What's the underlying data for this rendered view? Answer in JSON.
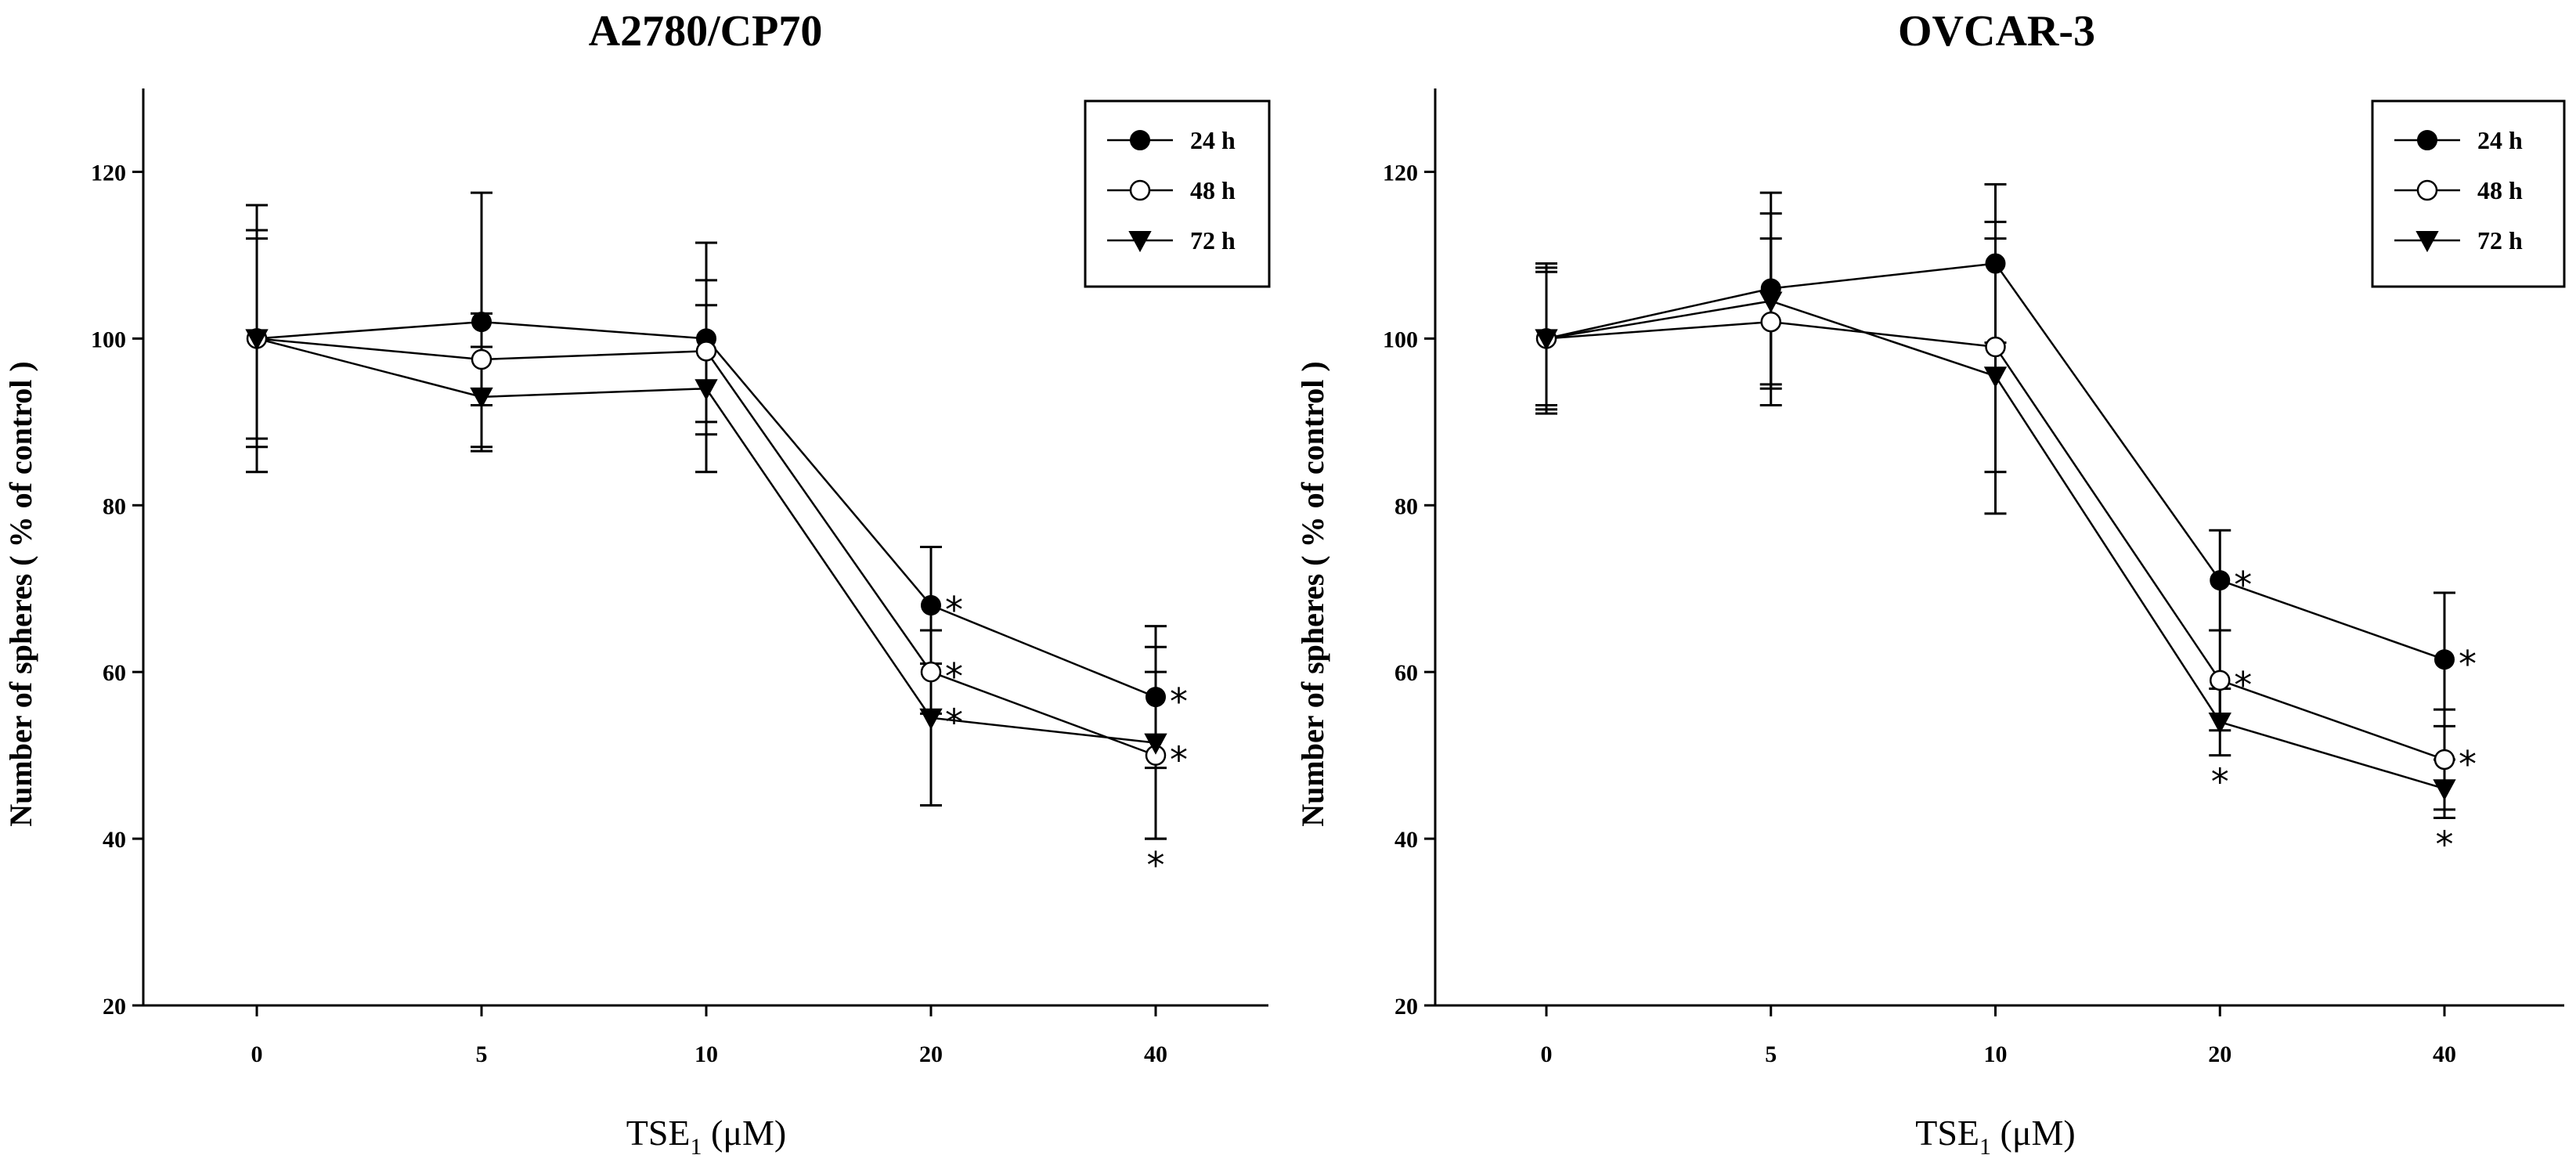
{
  "chart_data": [
    {
      "type": "line",
      "title": "A2780/CP70",
      "xlabel_main": "TSE",
      "xlabel_sub": "1",
      "xlabel_unit": " (μM)",
      "ylabel": "Number of spheres ( % of control )",
      "categories": [
        "0",
        "5",
        "10",
        "20",
        "40"
      ],
      "ylim": [
        20,
        130
      ],
      "yticks": [
        20,
        40,
        60,
        80,
        100,
        120
      ],
      "series": [
        {
          "name": "24 h",
          "marker": "filled-circle",
          "values": [
            100,
            102,
            100,
            68,
            57
          ],
          "errors": [
            16,
            15.5,
            11.5,
            7,
            8.5
          ],
          "stars": [
            false,
            false,
            false,
            true,
            true
          ]
        },
        {
          "name": "48 h",
          "marker": "open-circle",
          "values": [
            100,
            97.5,
            98.5,
            60,
            50
          ],
          "errors": [
            12,
            5.5,
            8.5,
            5,
            10
          ],
          "stars": [
            false,
            false,
            false,
            true,
            true
          ]
        },
        {
          "name": "72 h",
          "marker": "filled-triangle-down",
          "values": [
            100,
            93,
            94,
            54.5,
            51.5
          ],
          "errors": [
            13,
            6,
            10,
            10.5,
            11.5
          ],
          "stars": [
            false,
            false,
            false,
            true,
            true
          ]
        }
      ],
      "star_symbol": "*"
    },
    {
      "type": "line",
      "title": "OVCAR-3",
      "xlabel_main": "TSE",
      "xlabel_sub": "1",
      "xlabel_unit": " (μM)",
      "ylabel": "Number of spheres ( % of control )",
      "categories": [
        "0",
        "5",
        "10",
        "20",
        "40"
      ],
      "ylim": [
        20,
        130
      ],
      "yticks": [
        20,
        40,
        60,
        80,
        100,
        120
      ],
      "series": [
        {
          "name": "24 h",
          "marker": "filled-circle",
          "values": [
            100,
            106,
            109,
            71,
            61.5
          ],
          "errors": [
            9,
            11.5,
            9.5,
            6,
            8
          ],
          "stars": [
            false,
            false,
            false,
            true,
            true
          ]
        },
        {
          "name": "48 h",
          "marker": "open-circle",
          "values": [
            100,
            102,
            99,
            59,
            49.5
          ],
          "errors": [
            8,
            10,
            15,
            6,
            6
          ],
          "stars": [
            false,
            false,
            false,
            true,
            true
          ]
        },
        {
          "name": "72 h",
          "marker": "filled-triangle-down",
          "values": [
            100,
            104.5,
            95.5,
            54,
            46
          ],
          "errors": [
            8.5,
            10.5,
            16.5,
            4,
            3.5
          ],
          "stars": [
            false,
            false,
            false,
            true,
            true
          ]
        }
      ],
      "star_symbol": "*"
    }
  ]
}
